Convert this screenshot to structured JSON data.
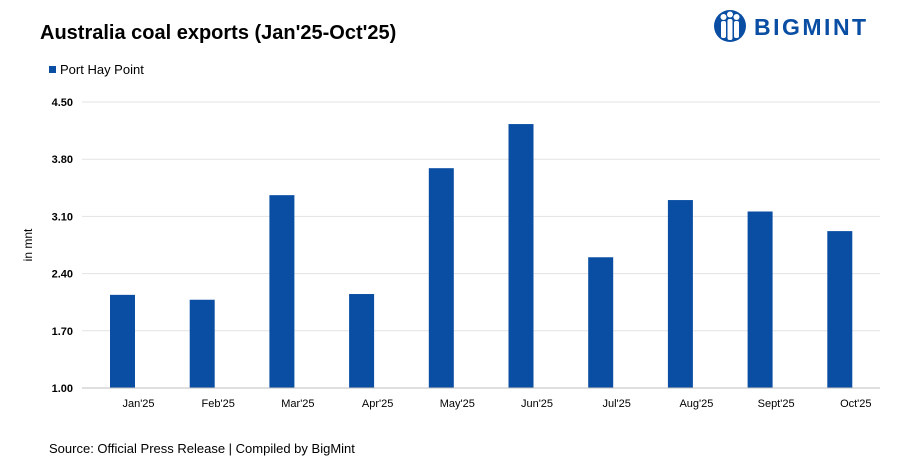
{
  "title": "Australia coal exports (Jan'25-Oct'25)",
  "brand": {
    "name": "BIGMINT",
    "color": "#0a4ea3"
  },
  "source": "Source:  Official Press Release  | Compiled  by BigMint",
  "chart_data": {
    "type": "bar",
    "title": "Australia coal exports (Jan'25-Oct'25)",
    "ylabel": "in mnt",
    "xlabel": "",
    "categories": [
      "Jan'25",
      "Feb'25",
      "Mar'25",
      "Apr'25",
      "May'25",
      "Jun'25",
      "Jul'25",
      "Aug'25",
      "Sept'25",
      "Oct'25"
    ],
    "series": [
      {
        "name": "Port Hay Point",
        "color": "#0a4ea3",
        "values": [
          2.14,
          2.08,
          3.36,
          2.15,
          3.69,
          4.23,
          2.6,
          3.3,
          3.16,
          2.92
        ]
      }
    ],
    "ylim": [
      1.0,
      4.5
    ],
    "yticks": [
      "1.00",
      "1.70",
      "2.40",
      "3.10",
      "3.80",
      "4.50"
    ],
    "grid": true,
    "legend": "top-left"
  }
}
